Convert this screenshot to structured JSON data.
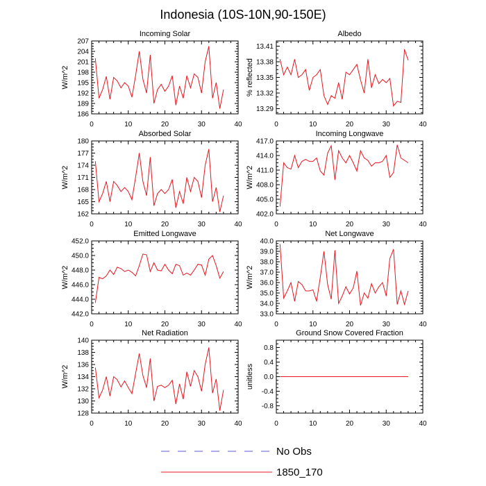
{
  "figure": {
    "title": "Indonesia (10S-10N,90-150E)"
  },
  "legend": {
    "entries": [
      {
        "label": "No Obs",
        "style": "dashed",
        "color": "#5a5ad8"
      },
      {
        "label": "1850_170",
        "style": "solid",
        "color": "#e8141e"
      }
    ]
  },
  "colors": {
    "series": "#e8141e",
    "obs": "#5a5ad8"
  },
  "chart_data": [
    {
      "type": "line",
      "title": "Incoming Solar",
      "ylabel": "W/m^2",
      "xlim": [
        0,
        40
      ],
      "ylim": [
        186,
        207
      ],
      "xticks": [
        0,
        10,
        20,
        30,
        40
      ],
      "yticks": [
        186,
        189,
        192,
        195,
        198,
        201,
        204,
        207
      ],
      "ytick_labels": [
        "186",
        "189",
        "192",
        "195",
        "198",
        "201",
        "204",
        "207"
      ],
      "series": [
        {
          "name": "1850_170",
          "x": [
            1,
            2,
            3,
            4,
            5,
            6,
            7,
            8,
            9,
            10,
            11,
            12,
            13,
            14,
            15,
            16,
            17,
            18,
            19,
            20,
            21,
            22,
            23,
            24,
            25,
            26,
            27,
            28,
            29,
            30,
            31,
            32,
            33,
            34,
            35,
            36
          ],
          "values": [
            202.0,
            190.5,
            193.0,
            196.8,
            190.2,
            196.5,
            195.5,
            193.5,
            195.0,
            194.0,
            190.8,
            197.0,
            204.0,
            196.0,
            192.0,
            203.0,
            189.0,
            193.0,
            194.5,
            192.5,
            194.0,
            197.0,
            188.5,
            194.0,
            190.5,
            197.0,
            193.5,
            197.5,
            196.5,
            192.0,
            201.0,
            205.5,
            190.5,
            195.0,
            187.5,
            193.0
          ]
        }
      ]
    },
    {
      "type": "line",
      "title": "Albedo",
      "ylabel": "% reflected",
      "xlim": [
        0,
        40
      ],
      "ylim": [
        13.28,
        13.42
      ],
      "xticks": [
        0,
        10,
        20,
        30,
        40
      ],
      "yticks": [
        13.29,
        13.32,
        13.35,
        13.38,
        13.41
      ],
      "ytick_labels": [
        "13.29",
        "13.32",
        "13.35",
        "13.38",
        "13.41"
      ],
      "series": [
        {
          "name": "1850_170",
          "x": [
            1,
            2,
            3,
            4,
            5,
            6,
            7,
            8,
            9,
            10,
            11,
            12,
            13,
            14,
            15,
            16,
            17,
            18,
            19,
            20,
            21,
            22,
            23,
            24,
            25,
            26,
            27,
            28,
            29,
            30,
            31,
            32,
            33,
            34,
            35,
            36
          ],
          "values": [
            13.385,
            13.355,
            13.37,
            13.355,
            13.385,
            13.35,
            13.355,
            13.365,
            13.325,
            13.35,
            13.355,
            13.365,
            13.315,
            13.298,
            13.315,
            13.31,
            13.34,
            13.308,
            13.36,
            13.355,
            13.365,
            13.375,
            13.345,
            13.32,
            13.385,
            13.33,
            13.355,
            13.338,
            13.346,
            13.34,
            13.348,
            13.295,
            13.304,
            13.302,
            13.404,
            13.383
          ]
        }
      ]
    },
    {
      "type": "line",
      "title": "Absorbed Solar",
      "ylabel": "W/m^2",
      "xlim": [
        0,
        40
      ],
      "ylim": [
        162,
        180
      ],
      "xticks": [
        0,
        10,
        20,
        30,
        40
      ],
      "yticks": [
        162,
        165,
        168,
        171,
        174,
        177,
        180
      ],
      "ytick_labels": [
        "162",
        "165",
        "168",
        "171",
        "174",
        "177",
        "180"
      ],
      "series": [
        {
          "name": "1850_170",
          "x": [
            1,
            2,
            3,
            4,
            5,
            6,
            7,
            8,
            9,
            10,
            11,
            12,
            13,
            14,
            15,
            16,
            17,
            18,
            19,
            20,
            21,
            22,
            23,
            24,
            25,
            26,
            27,
            28,
            29,
            30,
            31,
            32,
            33,
            34,
            35,
            36
          ],
          "values": [
            175.0,
            165.0,
            167.0,
            170.0,
            165.0,
            170.0,
            169.0,
            167.5,
            168.5,
            167.5,
            165.5,
            171.0,
            177.0,
            170.0,
            166.5,
            176.0,
            164.0,
            167.0,
            168.0,
            167.0,
            168.0,
            170.5,
            163.5,
            167.5,
            164.5,
            171.0,
            167.5,
            171.0,
            170.0,
            166.0,
            174.0,
            178.0,
            165.0,
            168.5,
            162.5,
            166.5
          ]
        }
      ]
    },
    {
      "type": "line",
      "title": "Incoming Longwave",
      "ylabel": "W/m^2",
      "xlim": [
        0,
        40
      ],
      "ylim": [
        402,
        417
      ],
      "xticks": [
        0,
        10,
        20,
        30,
        40
      ],
      "yticks": [
        402,
        405,
        408,
        411,
        414,
        417
      ],
      "ytick_labels": [
        "402.0",
        "405.0",
        "408.0",
        "411.0",
        "414.0",
        "417.0"
      ],
      "series": [
        {
          "name": "1850_170",
          "x": [
            1,
            2,
            3,
            4,
            5,
            6,
            7,
            8,
            9,
            10,
            11,
            12,
            13,
            14,
            15,
            16,
            17,
            18,
            19,
            20,
            21,
            22,
            23,
            24,
            25,
            26,
            27,
            28,
            29,
            30,
            31,
            32,
            33,
            34,
            35,
            36
          ],
          "values": [
            403.5,
            412.5,
            411.5,
            411.2,
            414.0,
            411.5,
            412.8,
            413.2,
            412.8,
            412.8,
            413.5,
            410.8,
            410.0,
            414.5,
            416.0,
            409.0,
            415.0,
            413.5,
            412.5,
            414.0,
            412.5,
            410.8,
            415.0,
            413.5,
            413.0,
            411.8,
            412.5,
            412.5,
            412.8,
            414.0,
            409.5,
            410.5,
            416.2,
            413.5,
            413.0,
            412.5
          ]
        }
      ]
    },
    {
      "type": "line",
      "title": "Emitted Longwave",
      "ylabel": "W/m^2",
      "xlim": [
        0,
        40
      ],
      "ylim": [
        442,
        452
      ],
      "xticks": [
        0,
        10,
        20,
        30,
        40
      ],
      "yticks": [
        442,
        444,
        446,
        448,
        450,
        452
      ],
      "ytick_labels": [
        "442.0",
        "444.0",
        "446.0",
        "448.0",
        "450.0",
        "452.0"
      ],
      "series": [
        {
          "name": "1850_170",
          "x": [
            1,
            2,
            3,
            4,
            5,
            6,
            7,
            8,
            9,
            10,
            11,
            12,
            13,
            14,
            15,
            16,
            17,
            18,
            19,
            20,
            21,
            22,
            23,
            24,
            25,
            26,
            27,
            28,
            29,
            30,
            31,
            32,
            33,
            34,
            35,
            36
          ],
          "values": [
            443.5,
            447.0,
            446.8,
            447.2,
            448.0,
            447.4,
            448.4,
            448.2,
            447.8,
            448.0,
            447.7,
            447.2,
            448.6,
            450.2,
            450.1,
            447.8,
            449.0,
            448.0,
            447.9,
            448.8,
            448.0,
            447.5,
            448.8,
            448.6,
            447.3,
            447.6,
            447.3,
            448.0,
            448.8,
            448.7,
            447.3,
            449.5,
            450.0,
            448.6,
            446.9,
            447.8
          ]
        }
      ]
    },
    {
      "type": "line",
      "title": "Net Longwave",
      "ylabel": "W/m^2",
      "xlim": [
        0,
        40
      ],
      "ylim": [
        33,
        40
      ],
      "xticks": [
        0,
        10,
        20,
        30,
        40
      ],
      "yticks": [
        33,
        34,
        35,
        36,
        37,
        38,
        39,
        40
      ],
      "ytick_labels": [
        "33.0",
        "34.0",
        "35.0",
        "36.0",
        "37.0",
        "38.0",
        "39.0",
        "40.0"
      ],
      "series": [
        {
          "name": "1850_170",
          "x": [
            1,
            2,
            3,
            4,
            5,
            6,
            7,
            8,
            9,
            10,
            11,
            12,
            13,
            14,
            15,
            16,
            17,
            18,
            19,
            20,
            21,
            22,
            23,
            24,
            25,
            26,
            27,
            28,
            29,
            30,
            31,
            32,
            33,
            34,
            35,
            36
          ],
          "values": [
            39.7,
            34.5,
            35.2,
            36.0,
            34.2,
            36.1,
            35.8,
            35.2,
            35.2,
            35.3,
            34.2,
            36.5,
            39.0,
            35.8,
            34.4,
            39.1,
            34.0,
            34.7,
            35.6,
            34.9,
            35.5,
            37.1,
            33.8,
            35.0,
            34.5,
            35.9,
            35.0,
            35.6,
            36.0,
            34.7,
            38.3,
            39.2,
            33.9,
            35.2,
            33.9,
            35.2
          ]
        }
      ]
    },
    {
      "type": "line",
      "title": "Net Radiation",
      "ylabel": "W/m^2",
      "xlim": [
        0,
        40
      ],
      "ylim": [
        128,
        140
      ],
      "xticks": [
        0,
        10,
        20,
        30,
        40
      ],
      "yticks": [
        128,
        130,
        132,
        134,
        136,
        138,
        140
      ],
      "ytick_labels": [
        "128",
        "130",
        "132",
        "134",
        "136",
        "138",
        "140"
      ],
      "series": [
        {
          "name": "1850_170",
          "x": [
            1,
            2,
            3,
            4,
            5,
            6,
            7,
            8,
            9,
            10,
            11,
            12,
            13,
            14,
            15,
            16,
            17,
            18,
            19,
            20,
            21,
            22,
            23,
            24,
            25,
            26,
            27,
            28,
            29,
            30,
            31,
            32,
            33,
            34,
            35,
            36
          ],
          "values": [
            135.5,
            130.5,
            131.8,
            134.0,
            130.8,
            134.0,
            133.5,
            132.3,
            133.3,
            132.2,
            131.2,
            134.5,
            137.8,
            134.2,
            132.2,
            137.0,
            130.0,
            132.4,
            132.6,
            132.2,
            132.6,
            133.4,
            129.5,
            132.8,
            130.3,
            134.8,
            132.4,
            135.0,
            134.0,
            131.6,
            136.0,
            138.8,
            131.3,
            133.6,
            128.4,
            131.8
          ]
        }
      ]
    },
    {
      "type": "line",
      "title": "Ground Snow Covered Fraction",
      "ylabel": "unitless",
      "xlim": [
        0,
        40
      ],
      "ylim": [
        -1,
        1
      ],
      "xticks": [
        0,
        10,
        20,
        30,
        40
      ],
      "yticks": [
        -0.8,
        -0.4,
        0.0,
        0.4,
        0.8
      ],
      "ytick_labels": [
        "-0.8",
        "-0.4",
        "0.0",
        "0.4",
        "0.8"
      ],
      "series": [
        {
          "name": "1850_170",
          "x": [
            1,
            36
          ],
          "values": [
            0.0,
            0.0
          ]
        }
      ]
    }
  ]
}
